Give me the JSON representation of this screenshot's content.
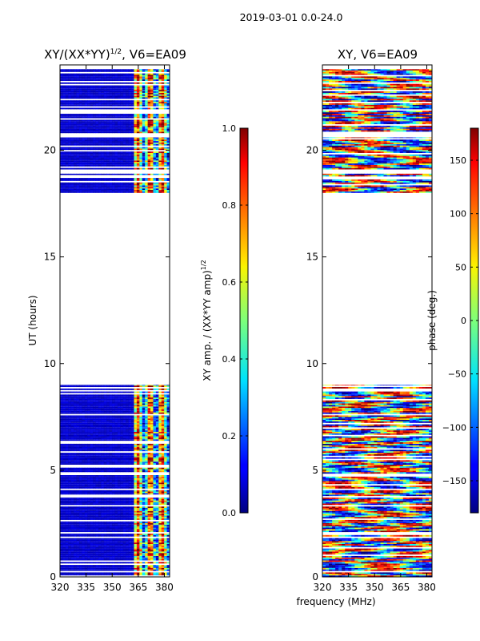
{
  "suptitle": "2019-03-01 0.0-24.0",
  "shared_xlabel": "frequency (MHz)",
  "chart_data": [
    {
      "type": "heatmap",
      "title": "XY/(XX*YY)",
      "title_sup": "1/2",
      "title_suffix": ", V6=EA09",
      "xlabel": "",
      "ylabel": "UT (hours)",
      "xlim": [
        320,
        383
      ],
      "ylim": [
        0,
        24
      ],
      "xticks": [
        320,
        335,
        350,
        365,
        380
      ],
      "yticks": [
        0,
        5,
        10,
        15,
        20
      ],
      "colormap": "jet",
      "data_ut_ranges": [
        [
          0.0,
          2.6
        ],
        [
          2.6,
          9.0
        ],
        [
          18.0,
          18.9
        ],
        [
          19.1,
          20.6
        ],
        [
          20.8,
          23.8
        ]
      ],
      "bright_freq_band": [
        363,
        383
      ],
      "colorbar": {
        "label": "XY amp. / (XX*YY amp)",
        "label_sup": "1/2",
        "range": [
          0.0,
          1.0
        ],
        "ticks": [
          "0.0",
          "0.2",
          "0.4",
          "0.6",
          "0.8",
          "1.0"
        ]
      }
    },
    {
      "type": "heatmap",
      "title": "XY, V6=EA09",
      "xlabel": "frequency (MHz)",
      "ylabel": "",
      "xlim": [
        320,
        383
      ],
      "ylim": [
        0,
        24
      ],
      "xticks": [
        320,
        335,
        350,
        365,
        380
      ],
      "yticks": [
        0,
        5,
        10,
        15,
        20
      ],
      "colormap": "jet",
      "data_ut_ranges": [
        [
          0.0,
          2.6
        ],
        [
          2.6,
          9.0
        ],
        [
          18.0,
          18.9
        ],
        [
          19.1,
          20.6
        ],
        [
          20.8,
          23.8
        ]
      ],
      "colorbar": {
        "label": "phase (deg.)",
        "range": [
          -180,
          180
        ],
        "ticks": [
          "−150",
          "−100",
          "−50",
          "0",
          "50",
          "100",
          "150"
        ]
      }
    }
  ]
}
